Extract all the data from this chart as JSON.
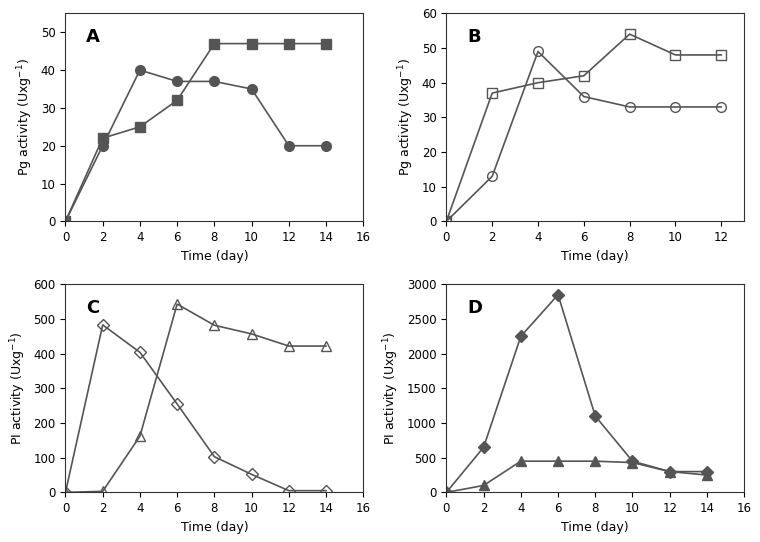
{
  "panel_A": {
    "label": "A",
    "ylabel": "Pg activity (Uxg-1)",
    "xlabel": "Time (day)",
    "xlim": [
      0,
      16
    ],
    "ylim": [
      0,
      55
    ],
    "yticks": [
      0,
      10,
      20,
      30,
      40,
      50
    ],
    "xticks": [
      0,
      2,
      4,
      6,
      8,
      10,
      12,
      14,
      16
    ],
    "series": [
      {
        "x": [
          0,
          2,
          4,
          6,
          8,
          10,
          12,
          14
        ],
        "y": [
          0,
          20,
          40,
          37,
          37,
          35,
          20,
          20
        ],
        "marker": "o",
        "fillstyle": "full",
        "color": "#555555",
        "markersize": 7,
        "linewidth": 1.2
      },
      {
        "x": [
          0,
          2,
          4,
          6,
          8,
          10,
          12,
          14
        ],
        "y": [
          0,
          22,
          25,
          32,
          47,
          47,
          47,
          47
        ],
        "marker": "s",
        "fillstyle": "full",
        "color": "#555555",
        "markersize": 7,
        "linewidth": 1.2
      }
    ]
  },
  "panel_B": {
    "label": "B",
    "ylabel": "Pg activity (Uxg-1)",
    "xlabel": "Time (day)",
    "xlim": [
      0,
      13
    ],
    "ylim": [
      0,
      60
    ],
    "yticks": [
      0,
      10,
      20,
      30,
      40,
      50,
      60
    ],
    "xticks": [
      0,
      2,
      4,
      6,
      8,
      10,
      12
    ],
    "series": [
      {
        "x": [
          0,
          2,
          4,
          6,
          8,
          10,
          12
        ],
        "y": [
          0,
          13,
          49,
          36,
          33,
          33,
          33
        ],
        "marker": "o",
        "fillstyle": "none",
        "color": "#555555",
        "markersize": 7,
        "linewidth": 1.2
      },
      {
        "x": [
          0,
          2,
          4,
          6,
          8,
          10,
          12
        ],
        "y": [
          0,
          37,
          40,
          42,
          54,
          48,
          48
        ],
        "marker": "s",
        "fillstyle": "none",
        "color": "#555555",
        "markersize": 7,
        "linewidth": 1.2
      }
    ]
  },
  "panel_C": {
    "label": "C",
    "ylabel": "PI activity (Uxg-1)",
    "xlabel": "Time (day)",
    "xlim": [
      0,
      16
    ],
    "ylim": [
      0,
      600
    ],
    "yticks": [
      0,
      100,
      200,
      300,
      400,
      500,
      600
    ],
    "xticks": [
      0,
      2,
      4,
      6,
      8,
      10,
      12,
      14,
      16
    ],
    "series": [
      {
        "x": [
          0,
          2,
          4,
          6,
          8,
          10,
          12,
          14
        ],
        "y": [
          0,
          483,
          404,
          255,
          103,
          52,
          5,
          5
        ],
        "marker": "D",
        "fillstyle": "none",
        "color": "#555555",
        "markersize": 6,
        "linewidth": 1.2
      },
      {
        "x": [
          0,
          2,
          4,
          6,
          8,
          10,
          12,
          14
        ],
        "y": [
          0,
          3,
          162,
          543,
          482,
          457,
          422,
          422
        ],
        "marker": "^",
        "fillstyle": "none",
        "color": "#555555",
        "markersize": 7,
        "linewidth": 1.2
      }
    ]
  },
  "panel_D": {
    "label": "D",
    "ylabel": "PI activity (Uxg-1)",
    "xlabel": "Time (day)",
    "xlim": [
      0,
      16
    ],
    "ylim": [
      0,
      3000
    ],
    "yticks": [
      0,
      500,
      1000,
      1500,
      2000,
      2500,
      3000
    ],
    "xticks": [
      0,
      2,
      4,
      6,
      8,
      10,
      12,
      14,
      16
    ],
    "series": [
      {
        "x": [
          0,
          2,
          4,
          6,
          8,
          10,
          12,
          14
        ],
        "y": [
          0,
          650,
          2250,
          2850,
          1100,
          450,
          300,
          300
        ],
        "marker": "D",
        "fillstyle": "full",
        "color": "#555555",
        "markersize": 6,
        "linewidth": 1.2
      },
      {
        "x": [
          0,
          2,
          4,
          6,
          8,
          10,
          12,
          14
        ],
        "y": [
          0,
          100,
          450,
          450,
          450,
          430,
          300,
          250
        ],
        "marker": "^",
        "fillstyle": "full",
        "color": "#555555",
        "markersize": 7,
        "linewidth": 1.2
      }
    ]
  },
  "background_color": "#ffffff"
}
